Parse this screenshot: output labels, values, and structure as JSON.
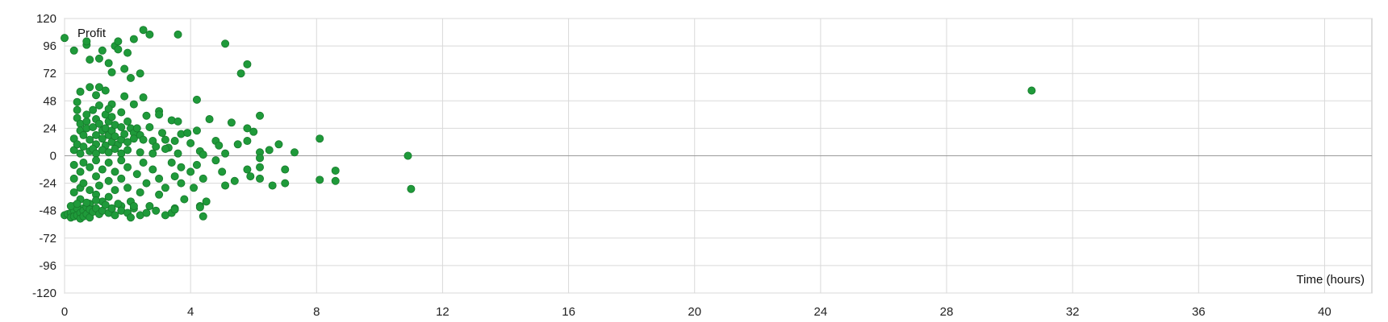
{
  "chart_data": {
    "type": "scatter",
    "title": "",
    "xlabel": "Time (hours)",
    "ylabel": "Profit",
    "xlim": [
      0,
      41.5
    ],
    "ylim": [
      -120,
      120
    ],
    "xticks": [
      0,
      4,
      8,
      12,
      16,
      20,
      24,
      28,
      32,
      36,
      40
    ],
    "yticks": [
      120,
      96,
      72,
      48,
      24,
      0,
      -24,
      -48,
      -72,
      -96,
      -120
    ],
    "xtick_labels": [
      "0",
      "4",
      "8",
      "12",
      "16",
      "20",
      "24",
      "28",
      "32",
      "36",
      "40"
    ],
    "ytick_labels": [
      "120",
      "96",
      "72",
      "48",
      "24",
      "0",
      "-24",
      "-48",
      "-72",
      "-96",
      "-120"
    ],
    "grid": true,
    "legend": "none",
    "marker_color": "#1f9a3a",
    "series": [
      {
        "points": [
          [
            0.0,
            103
          ],
          [
            0.3,
            92
          ],
          [
            0.7,
            97
          ],
          [
            0.7,
            100
          ],
          [
            0.8,
            84
          ],
          [
            1.1,
            85
          ],
          [
            1.2,
            92
          ],
          [
            1.4,
            81
          ],
          [
            1.5,
            73
          ],
          [
            1.6,
            96
          ],
          [
            1.7,
            93
          ],
          [
            1.7,
            100
          ],
          [
            1.9,
            76
          ],
          [
            2.0,
            90
          ],
          [
            2.1,
            68
          ],
          [
            2.2,
            102
          ],
          [
            2.4,
            72
          ],
          [
            2.5,
            110
          ],
          [
            2.7,
            106
          ],
          [
            3.6,
            106
          ],
          [
            5.1,
            98
          ],
          [
            5.6,
            72
          ],
          [
            5.8,
            80
          ],
          [
            0.5,
            56
          ],
          [
            0.8,
            60
          ],
          [
            1.0,
            53
          ],
          [
            1.1,
            60
          ],
          [
            1.3,
            57
          ],
          [
            1.5,
            45
          ],
          [
            1.9,
            52
          ],
          [
            2.2,
            45
          ],
          [
            2.5,
            51
          ],
          [
            3.0,
            39
          ],
          [
            3.4,
            31
          ],
          [
            4.2,
            49
          ],
          [
            4.6,
            32
          ],
          [
            5.3,
            29
          ],
          [
            5.8,
            24
          ],
          [
            6.0,
            21
          ],
          [
            6.2,
            35
          ],
          [
            0.4,
            47
          ],
          [
            0.4,
            40
          ],
          [
            0.4,
            33
          ],
          [
            0.5,
            28
          ],
          [
            0.5,
            22
          ],
          [
            0.6,
            18
          ],
          [
            0.7,
            30
          ],
          [
            0.7,
            36
          ],
          [
            0.7,
            24
          ],
          [
            0.8,
            14
          ],
          [
            0.9,
            40
          ],
          [
            0.9,
            25
          ],
          [
            1.0,
            32
          ],
          [
            1.0,
            18
          ],
          [
            1.0,
            10
          ],
          [
            1.1,
            44
          ],
          [
            1.1,
            28
          ],
          [
            1.2,
            22
          ],
          [
            1.2,
            15
          ],
          [
            1.3,
            36
          ],
          [
            1.3,
            24
          ],
          [
            1.3,
            9
          ],
          [
            1.4,
            41
          ],
          [
            1.4,
            30
          ],
          [
            1.4,
            18
          ],
          [
            1.5,
            34
          ],
          [
            1.5,
            22
          ],
          [
            1.5,
            12
          ],
          [
            1.6,
            27
          ],
          [
            1.6,
            17
          ],
          [
            1.7,
            10
          ],
          [
            1.8,
            38
          ],
          [
            1.8,
            25
          ],
          [
            1.8,
            14
          ],
          [
            1.9,
            19
          ],
          [
            2.0,
            30
          ],
          [
            2.0,
            12
          ],
          [
            2.1,
            24
          ],
          [
            2.2,
            20
          ],
          [
            2.2,
            15
          ],
          [
            2.3,
            24
          ],
          [
            2.4,
            18
          ],
          [
            2.5,
            14
          ],
          [
            2.6,
            35
          ],
          [
            2.7,
            25
          ],
          [
            2.8,
            13
          ],
          [
            2.9,
            8
          ],
          [
            3.0,
            36
          ],
          [
            3.1,
            20
          ],
          [
            3.2,
            14
          ],
          [
            3.3,
            7
          ],
          [
            3.5,
            13
          ],
          [
            3.6,
            30
          ],
          [
            3.7,
            19
          ],
          [
            3.9,
            20
          ],
          [
            4.0,
            11
          ],
          [
            4.2,
            22
          ],
          [
            4.3,
            4
          ],
          [
            4.4,
            1
          ],
          [
            4.8,
            13
          ],
          [
            4.9,
            9
          ],
          [
            5.1,
            2
          ],
          [
            5.5,
            10
          ],
          [
            5.8,
            13
          ],
          [
            6.2,
            3
          ],
          [
            6.5,
            5
          ],
          [
            6.8,
            10
          ],
          [
            7.3,
            3
          ],
          [
            8.1,
            15
          ],
          [
            10.9,
            0
          ],
          [
            0.3,
            15
          ],
          [
            0.3,
            5
          ],
          [
            0.4,
            10
          ],
          [
            0.5,
            2
          ],
          [
            0.6,
            8
          ],
          [
            0.8,
            4
          ],
          [
            0.9,
            6
          ],
          [
            1.0,
            2
          ],
          [
            1.2,
            5
          ],
          [
            1.4,
            3
          ],
          [
            1.6,
            6
          ],
          [
            1.8,
            2
          ],
          [
            2.0,
            5
          ],
          [
            2.4,
            3
          ],
          [
            2.8,
            2
          ],
          [
            3.2,
            6
          ],
          [
            3.6,
            2
          ],
          [
            0.3,
            -8
          ],
          [
            0.3,
            -20
          ],
          [
            0.3,
            -32
          ],
          [
            0.3,
            -44
          ],
          [
            0.5,
            -14
          ],
          [
            0.5,
            -28
          ],
          [
            0.5,
            -38
          ],
          [
            0.6,
            -6
          ],
          [
            0.6,
            -24
          ],
          [
            0.6,
            -46
          ],
          [
            0.8,
            -10
          ],
          [
            0.8,
            -30
          ],
          [
            0.8,
            -42
          ],
          [
            1.0,
            -4
          ],
          [
            1.0,
            -18
          ],
          [
            1.0,
            -34
          ],
          [
            1.0,
            -47
          ],
          [
            1.1,
            -26
          ],
          [
            1.2,
            -12
          ],
          [
            1.2,
            -40
          ],
          [
            1.4,
            -6
          ],
          [
            1.4,
            -22
          ],
          [
            1.4,
            -36
          ],
          [
            1.5,
            -46
          ],
          [
            1.6,
            -14
          ],
          [
            1.6,
            -30
          ],
          [
            1.8,
            -4
          ],
          [
            1.8,
            -20
          ],
          [
            1.8,
            -44
          ],
          [
            2.0,
            -10
          ],
          [
            2.0,
            -28
          ],
          [
            2.1,
            -40
          ],
          [
            2.3,
            -16
          ],
          [
            2.4,
            -32
          ],
          [
            2.5,
            -6
          ],
          [
            2.6,
            -24
          ],
          [
            2.7,
            -44
          ],
          [
            2.8,
            -12
          ],
          [
            3.0,
            -20
          ],
          [
            3.0,
            -34
          ],
          [
            3.2,
            -28
          ],
          [
            3.4,
            -6
          ],
          [
            3.5,
            -18
          ],
          [
            3.5,
            -46
          ],
          [
            3.7,
            -10
          ],
          [
            3.7,
            -24
          ],
          [
            3.8,
            -38
          ],
          [
            4.0,
            -14
          ],
          [
            4.1,
            -28
          ],
          [
            4.2,
            -8
          ],
          [
            4.3,
            -44
          ],
          [
            4.4,
            -20
          ],
          [
            4.5,
            -40
          ],
          [
            4.8,
            -4
          ],
          [
            5.0,
            -14
          ],
          [
            5.1,
            -26
          ],
          [
            5.4,
            -22
          ],
          [
            5.8,
            -12
          ],
          [
            5.9,
            -18
          ],
          [
            6.2,
            -2
          ],
          [
            6.2,
            -10
          ],
          [
            6.2,
            -20
          ],
          [
            6.6,
            -26
          ],
          [
            7.0,
            -12
          ],
          [
            7.0,
            -24
          ],
          [
            8.1,
            -21
          ],
          [
            8.6,
            -13
          ],
          [
            8.6,
            -22
          ],
          [
            11.0,
            -29
          ],
          [
            0.0,
            -52
          ],
          [
            0.1,
            -51
          ],
          [
            0.2,
            -50
          ],
          [
            0.2,
            -54
          ],
          [
            0.3,
            -48
          ],
          [
            0.3,
            -53
          ],
          [
            0.4,
            -46
          ],
          [
            0.4,
            -52
          ],
          [
            0.5,
            -50
          ],
          [
            0.5,
            -55
          ],
          [
            0.6,
            -48
          ],
          [
            0.6,
            -53
          ],
          [
            0.7,
            -45
          ],
          [
            0.7,
            -51
          ],
          [
            0.8,
            -47
          ],
          [
            0.8,
            -54
          ],
          [
            0.9,
            -49
          ],
          [
            1.0,
            -46
          ],
          [
            1.1,
            -51
          ],
          [
            1.2,
            -48
          ],
          [
            1.4,
            -50
          ],
          [
            1.5,
            -46
          ],
          [
            1.6,
            -52
          ],
          [
            1.8,
            -48
          ],
          [
            2.0,
            -50
          ],
          [
            2.1,
            -54
          ],
          [
            2.2,
            -46
          ],
          [
            2.4,
            -52
          ],
          [
            2.6,
            -50
          ],
          [
            2.9,
            -48
          ],
          [
            3.2,
            -52
          ],
          [
            3.4,
            -50
          ],
          [
            3.5,
            -47
          ],
          [
            4.3,
            -45
          ],
          [
            4.4,
            -53
          ],
          [
            0.2,
            -44
          ],
          [
            0.4,
            -42
          ],
          [
            0.7,
            -41
          ],
          [
            1.0,
            -39
          ],
          [
            1.3,
            -43
          ],
          [
            1.7,
            -42
          ],
          [
            2.2,
            -44
          ],
          [
            30.7,
            57
          ]
        ]
      }
    ]
  }
}
